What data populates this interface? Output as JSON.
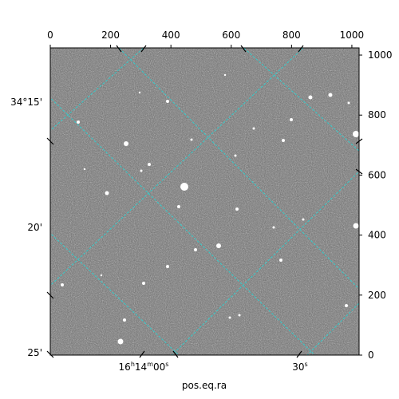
{
  "chart_data": {
    "type": "image",
    "title": "",
    "xlabel": "pos.eq.ra",
    "ylabel": "",
    "grid": true,
    "grid_color": "#33cccc",
    "colormap": "gray",
    "pixel_axes": {
      "x_range": [
        0,
        1024
      ],
      "y_range": [
        0,
        1024
      ],
      "top_ticks": [
        "0",
        "200",
        "400",
        "600",
        "800",
        "1000"
      ],
      "right_ticks": [
        "0",
        "200",
        "400",
        "600",
        "800",
        "1000"
      ]
    },
    "world_axes": {
      "ra_label": "pos.eq.ra",
      "ra_ticks": [
        "16h14m00s",
        "30s"
      ],
      "dec_ticks": [
        "34°15'",
        "20'",
        "25'"
      ]
    }
  }
}
